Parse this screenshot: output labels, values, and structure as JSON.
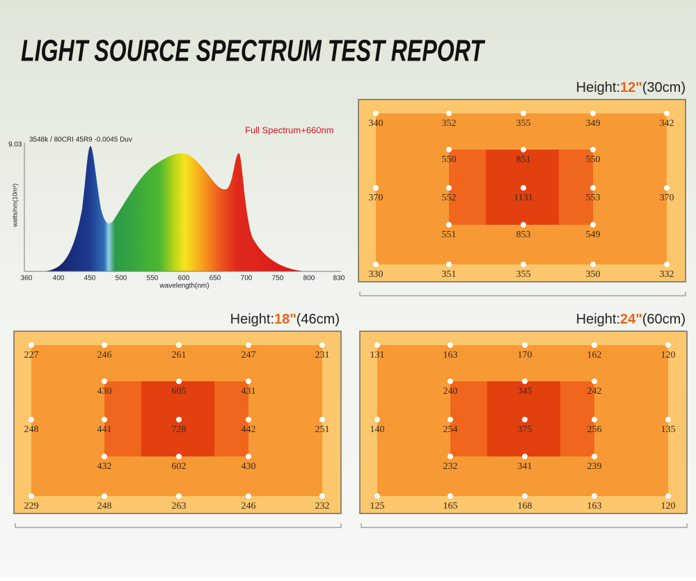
{
  "title": "LIGHT SOURCE SPECTRUM TEST REPORT",
  "spectrum": {
    "title": "Full Spectrum+660nm",
    "subtitle": "3548k / 80CRI 45R9 -0.0045 Duv",
    "y_max_label": "9.03",
    "y_label": "watts/nm(10m²)",
    "x_label": "wavelength(nm)",
    "x_ticks": [
      "360",
      "400",
      "450",
      "500",
      "550",
      "600",
      "650",
      "700",
      "750",
      "800",
      "830"
    ]
  },
  "maps": [
    {
      "height_label": "Height:",
      "height_in": "12\"",
      "height_cm": "(30cm)",
      "rows": [
        [
          340,
          352,
          355,
          349,
          342
        ],
        [
          550,
          851,
          550
        ],
        [
          370,
          552,
          1131,
          553,
          370
        ],
        [
          551,
          853,
          549
        ],
        [
          330,
          351,
          355,
          350,
          332
        ]
      ]
    },
    {
      "height_label": "Height:",
      "height_in": "18\"",
      "height_cm": "(46cm)",
      "rows": [
        [
          227,
          246,
          261,
          247,
          231
        ],
        [
          430,
          605,
          431
        ],
        [
          248,
          441,
          728,
          442,
          251
        ],
        [
          432,
          602,
          430
        ],
        [
          229,
          248,
          263,
          246,
          232
        ]
      ]
    },
    {
      "height_label": "Height:",
      "height_in": "24\"",
      "height_cm": "(60cm)",
      "rows": [
        [
          131,
          163,
          170,
          162,
          120
        ],
        [
          240,
          345,
          242
        ],
        [
          140,
          254,
          375,
          256,
          135
        ],
        [
          232,
          341,
          239
        ],
        [
          125,
          165,
          168,
          163,
          120
        ]
      ]
    }
  ]
}
